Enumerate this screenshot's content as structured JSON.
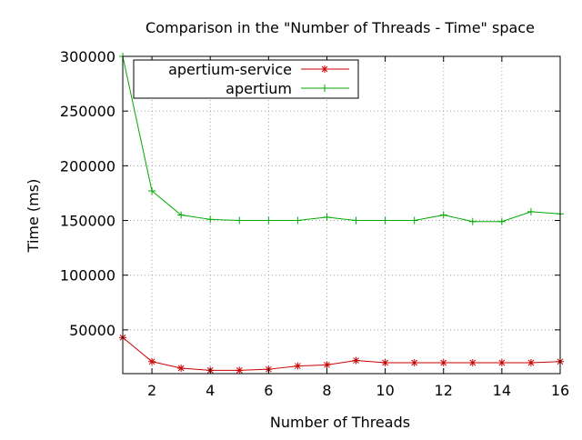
{
  "chart_data": {
    "type": "line",
    "title": "Comparison in the \"Number of Threads - Time\" space",
    "xlabel": "Number of Threads",
    "ylabel": "Time (ms)",
    "xlim": [
      1,
      16
    ],
    "ylim": [
      10000,
      300000
    ],
    "xticks": [
      2,
      4,
      6,
      8,
      10,
      12,
      14,
      16
    ],
    "yticks": [
      50000,
      100000,
      150000,
      200000,
      250000,
      300000
    ],
    "grid": true,
    "legend_position": "top-left",
    "x": [
      1,
      2,
      3,
      4,
      5,
      6,
      7,
      8,
      9,
      10,
      11,
      12,
      13,
      14,
      15,
      16
    ],
    "series": [
      {
        "name": "apertium-service",
        "color": "#cc0000",
        "marker": "asterisk",
        "values": [
          43000,
          21000,
          15000,
          13000,
          13000,
          14000,
          17000,
          18000,
          22000,
          20000,
          20000,
          20000,
          20000,
          20000,
          20000,
          21000
        ]
      },
      {
        "name": "apertium",
        "color": "#00aa00",
        "marker": "plus",
        "values": [
          300000,
          177000,
          155000,
          151000,
          150000,
          150000,
          150000,
          153000,
          150000,
          150000,
          150000,
          155000,
          149000,
          149000,
          158000,
          156000
        ]
      }
    ]
  }
}
